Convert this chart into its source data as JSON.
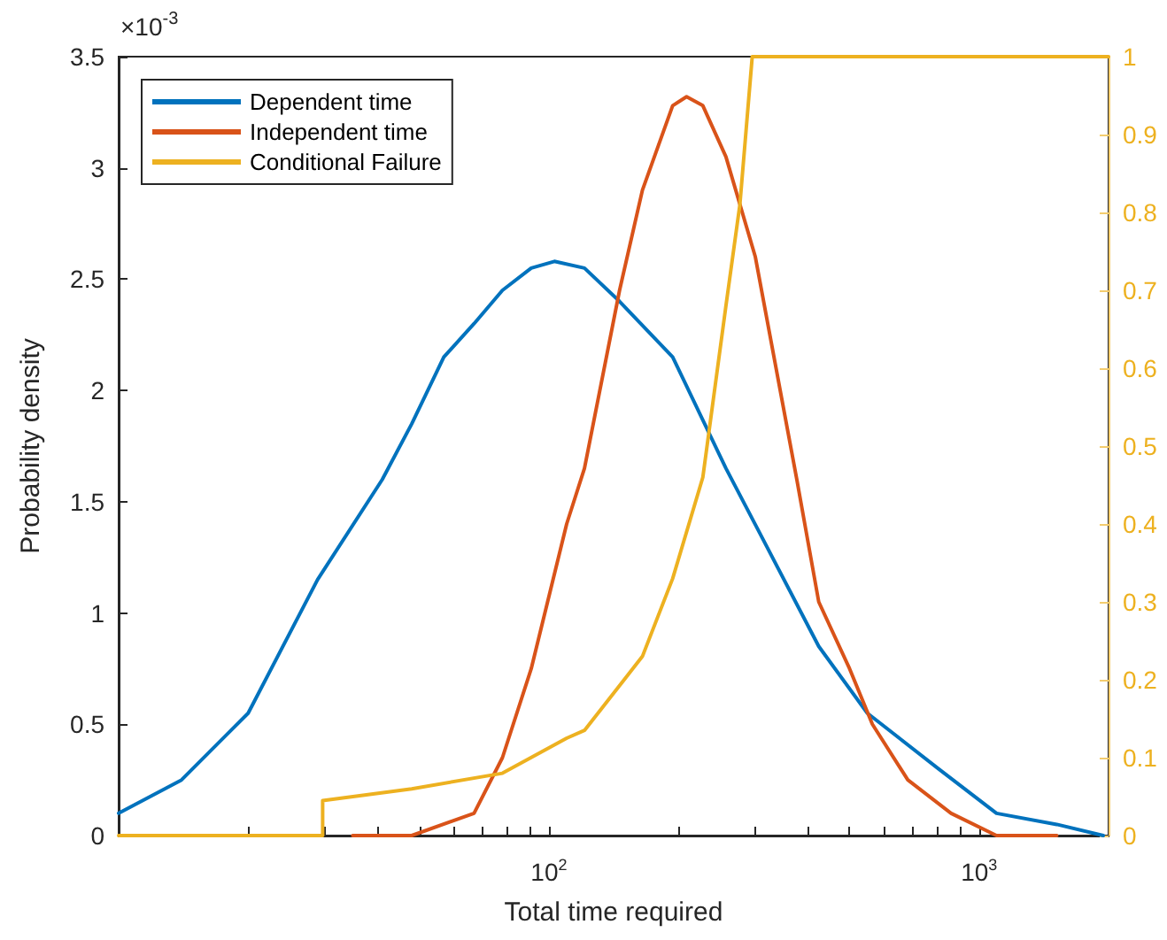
{
  "chart_data": {
    "type": "line",
    "xlabel": "Total time required",
    "ylabel": "Probability density",
    "annotations": [
      "×10$^{-3}$"
    ],
    "log": "x",
    "grid": false,
    "legend": "top left",
    "marker": "none",
    "line_style": "solid",
    "xlim": [
      10,
      2000
    ],
    "xticks": [
      {
        "value": 20,
        "label": null
      },
      {
        "value": 30,
        "label": null
      },
      {
        "value": 40,
        "label": null
      },
      {
        "value": 50,
        "label": null
      },
      {
        "value": 60,
        "label": null
      },
      {
        "value": 70,
        "label": null
      },
      {
        "value": 80,
        "label": null
      },
      {
        "value": 90,
        "label": null
      },
      {
        "value": 100,
        "label": "10$^{2}$"
      },
      {
        "value": 200,
        "label": null
      },
      {
        "value": 300,
        "label": null
      },
      {
        "value": 400,
        "label": null
      },
      {
        "value": 500,
        "label": null
      },
      {
        "value": 600,
        "label": null
      },
      {
        "value": 700,
        "label": null
      },
      {
        "value": 800,
        "label": null
      },
      {
        "value": 900,
        "label": null
      },
      {
        "value": 1000,
        "label": "10$^{3}$"
      }
    ],
    "ylim": [
      0,
      3.5
    ],
    "yticks": [
      0,
      0.5,
      1,
      1.5,
      2,
      2.5,
      3,
      3.5
    ],
    "y2lim": [
      0,
      1
    ],
    "y2ticks": [
      0,
      0.1,
      0.2,
      0.3,
      0.4,
      0.5,
      0.6,
      0.7,
      0.8,
      0.9,
      1
    ],
    "series": [
      {
        "name": "Dependent time",
        "color": "#0072bd",
        "x": [
          10,
          14,
          20,
          29,
          41,
          48,
          57,
          67,
          78,
          91,
          103,
          121,
          146,
          194,
          258,
          311,
          424,
          550,
          805,
          1098,
          1516,
          1944
        ],
        "values": [
          0.1,
          0.25,
          0.55,
          1.15,
          1.6,
          1.85,
          2.15,
          2.3,
          2.45,
          2.55,
          2.58,
          2.55,
          2.4,
          2.15,
          1.65,
          1.35,
          0.85,
          0.55,
          0.3,
          0.1,
          0.05,
          0
        ]
      },
      {
        "name": "Independent time",
        "color": "#d95319",
        "x": [
          35,
          48,
          67,
          78,
          91,
          110,
          121,
          146,
          165,
          194,
          209,
          228,
          258,
          302,
          377,
          424,
          500,
          565,
          683,
          861,
          1098,
          1516
        ],
        "values": [
          0,
          0,
          0.1,
          0.35,
          0.75,
          1.4,
          1.65,
          2.45,
          2.9,
          3.28,
          3.32,
          3.28,
          3.05,
          2.6,
          1.6,
          1.05,
          0.75,
          0.5,
          0.25,
          0.1,
          0,
          0
        ]
      },
      {
        "name": "Conditional Failure",
        "color": "#edb120",
        "axis": "y2",
        "x": [
          10,
          29.8,
          29.8,
          48,
          78,
          110,
          121,
          165,
          194,
          228,
          258,
          278,
          297,
          2000
        ],
        "values": [
          0,
          0,
          0.045,
          0.06,
          0.08,
          0.125,
          0.135,
          0.23,
          0.33,
          0.46,
          0.68,
          0.81,
          1,
          1
        ]
      }
    ]
  }
}
